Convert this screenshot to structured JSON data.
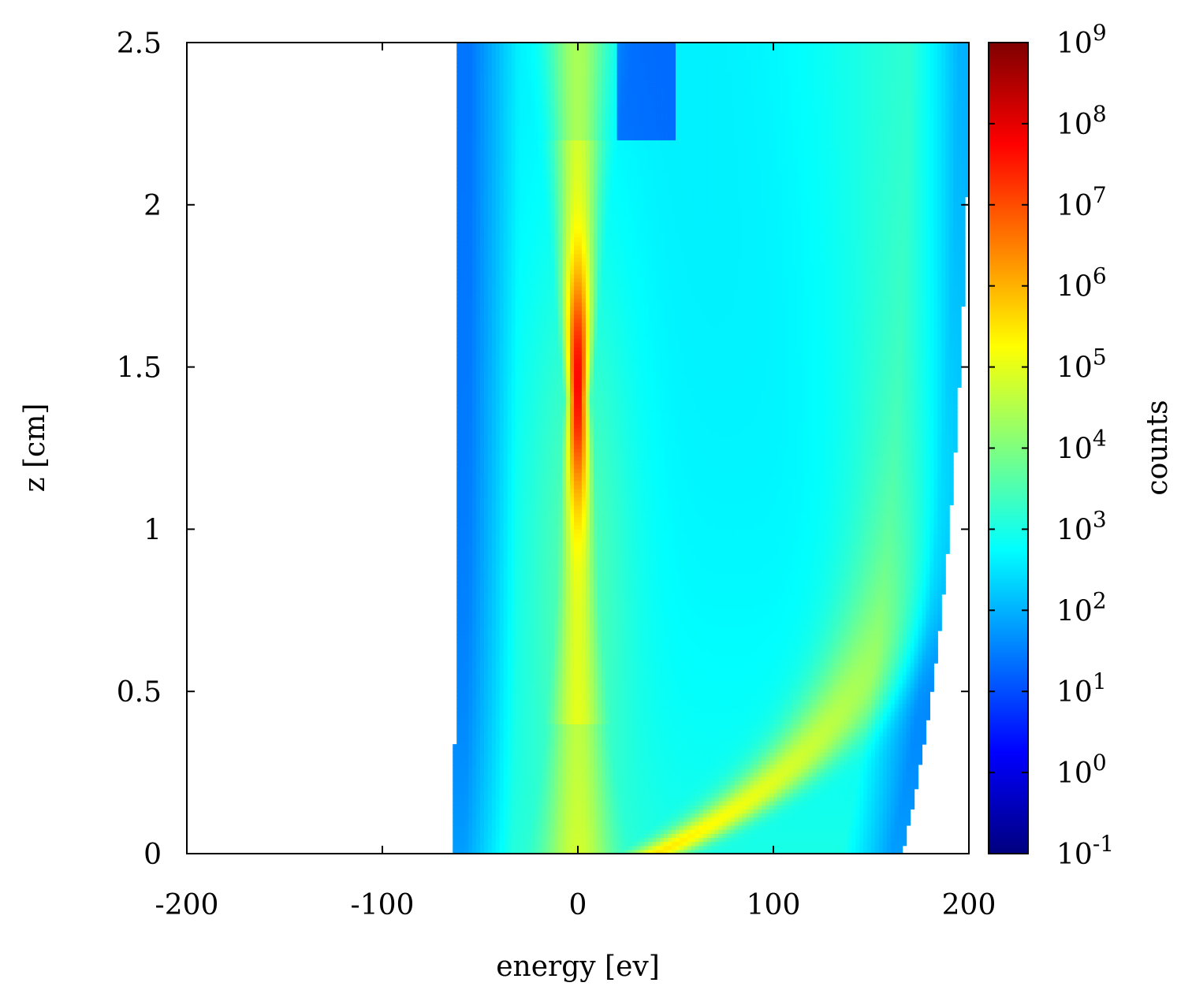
{
  "chart_data": {
    "type": "heatmap",
    "title": "",
    "xlabel": "energy [ev]",
    "ylabel": "z [cm]",
    "xlim": [
      -200,
      200
    ],
    "ylim": [
      0,
      2.5
    ],
    "x_ticks": [
      {
        "value": -200,
        "label": "-200"
      },
      {
        "value": -100,
        "label": "-100"
      },
      {
        "value": 0,
        "label": "0"
      },
      {
        "value": 100,
        "label": "100"
      },
      {
        "value": 200,
        "label": "200"
      }
    ],
    "y_ticks": [
      {
        "value": 0,
        "label": "0"
      },
      {
        "value": 0.5,
        "label": "0.5"
      },
      {
        "value": 1,
        "label": "1"
      },
      {
        "value": 1.5,
        "label": "1.5"
      },
      {
        "value": 2,
        "label": "2"
      },
      {
        "value": 2.5,
        "label": "2.5"
      }
    ],
    "colorbar": {
      "label": "counts",
      "scale": "log",
      "range_exponent": [
        -1,
        9
      ],
      "ticks": [
        {
          "exp": 9,
          "base": "10",
          "sup": "9"
        },
        {
          "exp": 8,
          "base": "10",
          "sup": "8"
        },
        {
          "exp": 7,
          "base": "10",
          "sup": "7"
        },
        {
          "exp": 6,
          "base": "10",
          "sup": "6"
        },
        {
          "exp": 5,
          "base": "10",
          "sup": "5"
        },
        {
          "exp": 4,
          "base": "10",
          "sup": "4"
        },
        {
          "exp": 3,
          "base": "10",
          "sup": "3"
        },
        {
          "exp": 2,
          "base": "10",
          "sup": "2"
        },
        {
          "exp": 1,
          "base": "10",
          "sup": "1"
        },
        {
          "exp": 0,
          "base": "10",
          "sup": "0"
        },
        {
          "exp": -1,
          "base": "10",
          "sup": "-1"
        }
      ],
      "colormap": [
        "#00007f",
        "#0000ff",
        "#007fff",
        "#00ffff",
        "#7fff7f",
        "#ffff00",
        "#ff7f00",
        "#ff0000",
        "#7f0000"
      ]
    },
    "features": [
      {
        "name": "central-peak",
        "energy": 0,
        "z_range": [
          0.4,
          2.2
        ],
        "peak_log_counts": 8.0
      },
      {
        "name": "diagonal-branch",
        "energy_at_z0": 40,
        "energy_at_z0_5": 140,
        "peak_log_counts": 4.8
      },
      {
        "name": "envelope",
        "energy_min": -80,
        "energy_max": 195
      }
    ]
  }
}
